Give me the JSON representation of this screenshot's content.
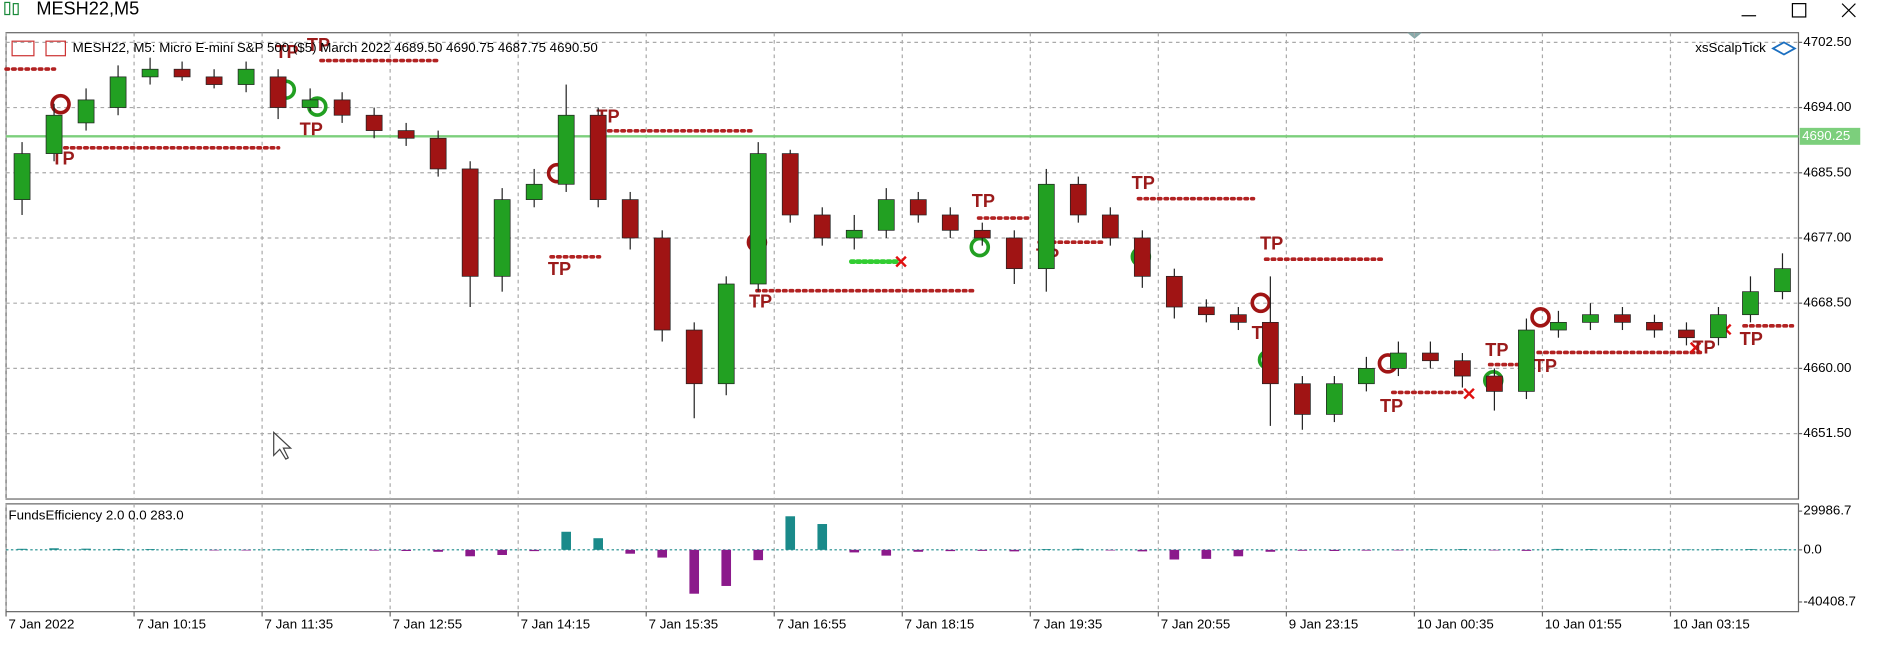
{
  "window": {
    "title": "MESH22,M5"
  },
  "header": {
    "info": "MESH22, M5:  Micro E-mini S&P 500 ($5) March 2022  4689.50 4690.75 4687.75 4690.50",
    "indicator_name": "xsScalpTick"
  },
  "tp_labels": [
    "TP",
    "TP",
    "TP",
    "TP",
    "TP",
    "TP",
    "TP",
    "TP",
    "TP",
    "TP",
    "TP",
    "TP",
    "TP",
    "TP",
    "TP",
    "TP",
    "TP"
  ],
  "chart_data": [
    {
      "type": "candlestick",
      "up_color": "#22a022",
      "down_color": "#a01414",
      "open": [
        4682,
        4688,
        4692,
        4694,
        4698,
        4699,
        4698,
        4697,
        4698,
        4694,
        4695,
        4693,
        4691,
        4690,
        4686,
        4672,
        4682,
        4684,
        4693,
        4682,
        4677,
        4665,
        4658,
        4671,
        4688,
        4680,
        4677,
        4678,
        4682,
        4680,
        4678,
        4677,
        4673,
        4684,
        4680,
        4677,
        4672,
        4668,
        4667,
        4666,
        4658,
        4654,
        4658,
        4660,
        4662,
        4661,
        4659,
        4657,
        4665,
        4666,
        4667,
        4666,
        4665,
        4664,
        4667,
        4670
      ],
      "high": [
        4689.5,
        4694.5,
        4696.5,
        4699.5,
        4700.5,
        4700,
        4699,
        4700,
        4699,
        4696.5,
        4696,
        4694,
        4692,
        4691,
        4687,
        4683.5,
        4686,
        4697,
        4694,
        4683,
        4678,
        4666,
        4672,
        4689.5,
        4688.5,
        4681,
        4680,
        4683.5,
        4683,
        4681,
        4679,
        4678,
        4686,
        4685,
        4681,
        4678,
        4673,
        4669,
        4668,
        4672,
        4659,
        4659,
        4661.5,
        4663.5,
        4663.5,
        4662,
        4660,
        4666.5,
        4667.5,
        4668.5,
        4668,
        4667,
        4666,
        4668,
        4672,
        4675
      ],
      "low": [
        4680,
        4687,
        4691,
        4693,
        4697,
        4697.5,
        4696.5,
        4696,
        4692.5,
        4693.5,
        4692,
        4690,
        4689,
        4685,
        4668,
        4670,
        4681,
        4683,
        4681,
        4675.5,
        4663.5,
        4653.5,
        4656.5,
        4670,
        4679,
        4676,
        4675.5,
        4677,
        4679,
        4677,
        4676,
        4671,
        4670,
        4679,
        4676,
        4670.5,
        4666.5,
        4666,
        4665,
        4652.5,
        4652,
        4653,
        4657,
        4659,
        4660,
        4657.5,
        4654.5,
        4656,
        4664,
        4665,
        4665,
        4664,
        4663,
        4663,
        4666,
        4669
      ],
      "close": [
        4688,
        4693,
        4695,
        4698,
        4699,
        4698,
        4697,
        4699,
        4694,
        4695,
        4693,
        4691,
        4690,
        4686,
        4672,
        4682,
        4684,
        4693,
        4682,
        4677,
        4665,
        4658,
        4671,
        4688,
        4680,
        4677,
        4678,
        4682,
        4680,
        4678,
        4677,
        4673,
        4684,
        4680,
        4677,
        4672,
        4668,
        4667,
        4666,
        4658,
        4654,
        4658,
        4660,
        4662,
        4661,
        4659,
        4657,
        4665,
        4666,
        4667,
        4666,
        4665,
        4664,
        4667,
        4670,
        4673
      ],
      "xlim": [
        0,
        56
      ],
      "xticks": [
        {
          "value": 0,
          "label": "7 Jan 2022"
        },
        {
          "value": 4,
          "label": "7 Jan 10:15"
        },
        {
          "value": 8,
          "label": "7 Jan 11:35"
        },
        {
          "value": 12,
          "label": "7 Jan 12:55"
        },
        {
          "value": 16,
          "label": "7 Jan 14:15"
        },
        {
          "value": 20,
          "label": "7 Jan 15:35"
        },
        {
          "value": 24,
          "label": "7 Jan 16:55"
        },
        {
          "value": 28,
          "label": "7 Jan 18:15"
        },
        {
          "value": 32,
          "label": "7 Jan 19:35"
        },
        {
          "value": 36,
          "label": "7 Jan 20:55"
        },
        {
          "value": 40,
          "label": "9 Jan 23:15"
        },
        {
          "value": 44,
          "label": "10 Jan 00:35"
        },
        {
          "value": 48,
          "label": "10 Jan 01:55"
        },
        {
          "value": 52,
          "label": "10 Jan 03:15"
        }
      ],
      "ylim": [
        4642.97,
        4703.76
      ],
      "yticks": [
        {
          "value": 4702.5,
          "label": "4702.50"
        },
        {
          "value": 4694,
          "label": "4694.00"
        },
        {
          "value": 4685.5,
          "label": "4685.50"
        },
        {
          "value": 4677,
          "label": "4677.00"
        },
        {
          "value": 4668.5,
          "label": "4668.50"
        },
        {
          "value": 4660,
          "label": "4660.00"
        },
        {
          "value": 4651.5,
          "label": "4651.50"
        }
      ],
      "price_line": {
        "value": 4690.25,
        "label": "4690.25",
        "color": "#7ccf7c"
      },
      "grid": true
    },
    {
      "type": "bar",
      "title": "FundsEfficiency 2.0 0.0 283.0",
      "pos_color": "#1a8a8a",
      "neg_color": "#8b1a8b",
      "values": [
        800,
        1200,
        900,
        700,
        600,
        500,
        -400,
        -500,
        300,
        500,
        400,
        -600,
        -900,
        -1500,
        -5000,
        -4000,
        -1000,
        14000,
        9000,
        -3000,
        -6000,
        -34000,
        -28000,
        -8000,
        26000,
        20000,
        -2000,
        -4500,
        -1500,
        -1000,
        -800,
        -1200,
        600,
        800,
        -500,
        -1200,
        -7500,
        -7000,
        -5000,
        -1500,
        -700,
        -900,
        -600,
        -400,
        500,
        600,
        -300,
        -800,
        700,
        600,
        500,
        400,
        300,
        500,
        600,
        400
      ],
      "ylim": [
        -47917,
        35618
      ],
      "yticks": [
        29986.7,
        {
          "value": 0,
          "label": "0.0"
        },
        -40408.7
      ]
    }
  ]
}
